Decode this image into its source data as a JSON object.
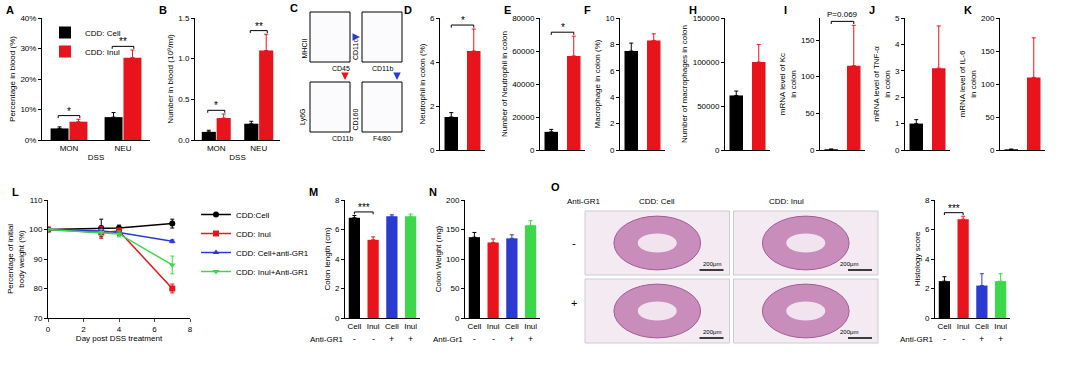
{
  "chart_data": [
    {
      "panel": "A",
      "type": "bar",
      "ylabel": "Percentage in blood (%)",
      "xlabel": "DSS",
      "categories": [
        "MON",
        "NEU"
      ],
      "series": [
        {
          "name": "CDD: Cell",
          "color": "#000000",
          "values": [
            3.8,
            7.5
          ],
          "errors": [
            0.5,
            1.5
          ]
        },
        {
          "name": "CDD: Inul",
          "color": "#e8141c",
          "values": [
            6.0,
            27.0
          ],
          "errors": [
            0.8,
            2.5
          ]
        }
      ],
      "ylim": [
        0,
        40
      ],
      "yticks": [
        {
          "value": 0,
          "label": "0%"
        },
        {
          "value": 10,
          "label": "10%"
        },
        {
          "value": 20,
          "label": "20%"
        },
        {
          "value": 30,
          "label": "30%"
        },
        {
          "value": 40,
          "label": "40%"
        }
      ],
      "legend": "upper left",
      "grid": false,
      "annotations": [
        {
          "text": "*",
          "category": 0
        },
        {
          "text": "**",
          "category": 1
        }
      ]
    },
    {
      "panel": "B",
      "type": "bar",
      "ylabel": "Number in blood (10⁹/ml)",
      "xlabel": "DSS",
      "categories": [
        "MON",
        "NEU"
      ],
      "series": [
        {
          "color": "#000000",
          "values": [
            0.1,
            0.2
          ],
          "errors": [
            0.02,
            0.03
          ]
        },
        {
          "color": "#e8141c",
          "values": [
            0.27,
            1.1
          ],
          "errors": [
            0.05,
            0.2
          ]
        }
      ],
      "ylim": [
        0,
        1.5
      ],
      "yticks": [
        {
          "value": 0,
          "label": "0.0"
        },
        0.5,
        {
          "value": 1,
          "label": "1.0"
        },
        1.5
      ],
      "grid": false,
      "annotations": [
        {
          "text": "*",
          "category": 0
        },
        {
          "text": "**",
          "category": 1
        }
      ]
    },
    {
      "panel": "C",
      "type": "flow",
      "plots": [
        {
          "x_label": "CD45",
          "y_label": "MHCII"
        },
        {
          "x_label": "CD11b",
          "y_label": "CD11c"
        },
        {
          "x_label": "CD11b",
          "y_label": "Ly6G"
        },
        {
          "x_label": "F4/80",
          "y_label": "CD160"
        }
      ]
    },
    {
      "panel": "D",
      "type": "bar",
      "ylabel": "Neutrophil in colon (%)",
      "categories": [
        null,
        null
      ],
      "values": [
        1.5,
        4.5
      ],
      "errors": [
        0.2,
        1.0
      ],
      "colors": [
        "#000000",
        "#e8141c"
      ],
      "ylim": [
        0,
        6
      ],
      "yticks": [
        0,
        2,
        4,
        6
      ],
      "tick_labels": "y",
      "grid": false,
      "annotations": [
        {
          "text": "*",
          "from": 0,
          "to": 1
        }
      ]
    },
    {
      "panel": "E",
      "type": "bar",
      "ylabel": "Number of Neutrophil in colon",
      "categories": [
        null,
        null
      ],
      "values": [
        11000,
        57000
      ],
      "errors": [
        1500,
        12000
      ],
      "colors": [
        "#000000",
        "#e8141c"
      ],
      "ylim": [
        0,
        80000
      ],
      "yticks": [
        0,
        20000,
        40000,
        60000,
        80000
      ],
      "tick_labels": "y",
      "grid": false,
      "annotations": [
        {
          "text": "*",
          "from": 0,
          "to": 1
        }
      ]
    },
    {
      "panel": "F",
      "type": "bar",
      "ylabel": "Macrophage in colon (%)",
      "categories": [
        null,
        null
      ],
      "values": [
        7.5,
        8.3
      ],
      "errors": [
        0.6,
        0.5
      ],
      "colors": [
        "#000000",
        "#e8141c"
      ],
      "ylim": [
        0,
        10
      ],
      "yticks": [
        0,
        2,
        4,
        6,
        8,
        10
      ],
      "tick_labels": "y",
      "grid": false
    },
    {
      "panel": "H",
      "type": "bar",
      "ylabel": "Number of macrophages in colon",
      "categories": [
        null,
        null
      ],
      "values": [
        62000,
        100000
      ],
      "errors": [
        5000,
        20000
      ],
      "colors": [
        "#000000",
        "#e8141c"
      ],
      "ylim": [
        0,
        150000
      ],
      "yticks": [
        0,
        50000,
        100000,
        150000
      ],
      "tick_labels": "y",
      "grid": false
    },
    {
      "panel": "I",
      "type": "bar",
      "ylabel": "mRNA level of Kc\nin colon",
      "categories": [
        null,
        null
      ],
      "values": [
        1,
        115
      ],
      "errors": [
        0.3,
        55
      ],
      "colors": [
        "#000000",
        "#e8141c"
      ],
      "ylim": [
        0,
        180
      ],
      "yticks": [
        0,
        50,
        100,
        150
      ],
      "tick_labels": "y",
      "grid": false,
      "annotations": [
        {
          "text": "P=0.069",
          "from": 0,
          "to": 1
        }
      ]
    },
    {
      "panel": "J",
      "type": "bar",
      "ylabel": "mRNA level of TNF-α\nin colon",
      "categories": [
        null,
        null
      ],
      "values": [
        1,
        3.1
      ],
      "errors": [
        0.15,
        1.6
      ],
      "colors": [
        "#000000",
        "#e8141c"
      ],
      "ylim": [
        0,
        5
      ],
      "yticks": [
        0,
        1,
        2,
        3,
        4,
        5
      ],
      "tick_labels": "y",
      "grid": false
    },
    {
      "panel": "K",
      "type": "bar",
      "ylabel": "mRNA level of IL-6\nin colon",
      "categories": [
        null,
        null
      ],
      "values": [
        1,
        110
      ],
      "errors": [
        0.3,
        60
      ],
      "colors": [
        "#000000",
        "#e8141c"
      ],
      "ylim": [
        0,
        200
      ],
      "yticks": [
        0,
        50,
        100,
        150,
        200
      ],
      "tick_labels": "y",
      "grid": false
    },
    {
      "panel": "L",
      "type": "line",
      "ylabel": "Percentage of initial\nbody weight (%)",
      "xlabel": "Day post DSS treatment",
      "x": [
        0,
        3,
        4,
        7
      ],
      "series": [
        {
          "name": "CDD:Cell",
          "color": "#000000",
          "marker": "circle",
          "values": [
            100,
            100.5,
            100.5,
            102
          ],
          "errors": [
            0,
            3,
            1,
            1.5
          ]
        },
        {
          "name": "CDD: Inul",
          "color": "#e8141c",
          "marker": "square",
          "values": [
            100,
            99,
            99.5,
            80
          ],
          "errors": [
            0,
            2,
            1,
            1.5
          ]
        },
        {
          "name": "CDD: Cell+anti-GR1",
          "color": "#2b3bd1",
          "marker": "triangle-up",
          "values": [
            100,
            99.5,
            99,
            96
          ],
          "errors": [
            0,
            1,
            1,
            0.5
          ]
        },
        {
          "name": "CDD: Inul+Anti-GR1",
          "color": "#3cd84a",
          "marker": "triangle-down",
          "values": [
            100,
            99,
            98.5,
            88
          ],
          "errors": [
            0,
            1,
            1,
            3
          ]
        }
      ],
      "xlim": [
        0,
        8
      ],
      "xticks": [
        0,
        2,
        4,
        6,
        8
      ],
      "ylim": [
        70,
        110
      ],
      "yticks": [
        70,
        80,
        90,
        100,
        110
      ],
      "legend": "right",
      "grid": false
    },
    {
      "panel": "M",
      "type": "bar",
      "ylabel": "Colon length (cm)",
      "categories": [
        "Cell",
        "Inul",
        "Cell",
        "Inul"
      ],
      "values": [
        6.8,
        5.3,
        6.9,
        6.9
      ],
      "errors": [
        0.15,
        0.2,
        0.1,
        0.15
      ],
      "colors": [
        "#000000",
        "#e8141c",
        "#2b3bd1",
        "#3cd84a"
      ],
      "ylim": [
        0,
        8
      ],
      "yticks": [
        0,
        2,
        4,
        6,
        8
      ],
      "grid": false,
      "group_labels": {
        "title": "Anti-GR1",
        "labels": [
          "-",
          "-",
          "+",
          "+"
        ]
      },
      "annotations": [
        {
          "text": "***",
          "from": 0,
          "to": 1
        }
      ]
    },
    {
      "panel": "N",
      "type": "bar",
      "ylabel": "Colon Weight (mg)",
      "categories": [
        "Cell",
        "Inul",
        "Cell",
        "Inul"
      ],
      "values": [
        137,
        128,
        135,
        157
      ],
      "errors": [
        8,
        6,
        6,
        8
      ],
      "colors": [
        "#000000",
        "#e8141c",
        "#2b3bd1",
        "#3cd84a"
      ],
      "ylim": [
        0,
        200
      ],
      "yticks": [
        0,
        50,
        100,
        150,
        200
      ],
      "grid": false,
      "group_labels": {
        "title": "Anti-Gr1",
        "labels": [
          "-",
          "-",
          "+",
          "+"
        ]
      }
    },
    {
      "panel": "O",
      "type": "image",
      "row_title": "Anti-GR1",
      "columns": [
        "CDD: Cell",
        "CDD: Inul"
      ],
      "rows": [
        "-",
        "+"
      ],
      "scale_bar": "200μm"
    },
    {
      "type": "bar",
      "ylabel": "Histology score",
      "categories": [
        "Cell",
        "Inul",
        "Cell",
        "Inul"
      ],
      "values": [
        2.5,
        6.7,
        2.2,
        2.5
      ],
      "errors": [
        0.3,
        0.2,
        0.8,
        0.5
      ],
      "colors": [
        "#000000",
        "#e8141c",
        "#2b3bd1",
        "#3cd84a"
      ],
      "ylim": [
        0,
        8
      ],
      "yticks": [
        0,
        2,
        4,
        6,
        8
      ],
      "grid": false,
      "group_labels": {
        "title": "Anti-GR1",
        "labels": [
          "-",
          "-",
          "+",
          "+"
        ]
      },
      "annotations": [
        {
          "text": "***",
          "from": 0,
          "to": 1
        }
      ]
    }
  ]
}
